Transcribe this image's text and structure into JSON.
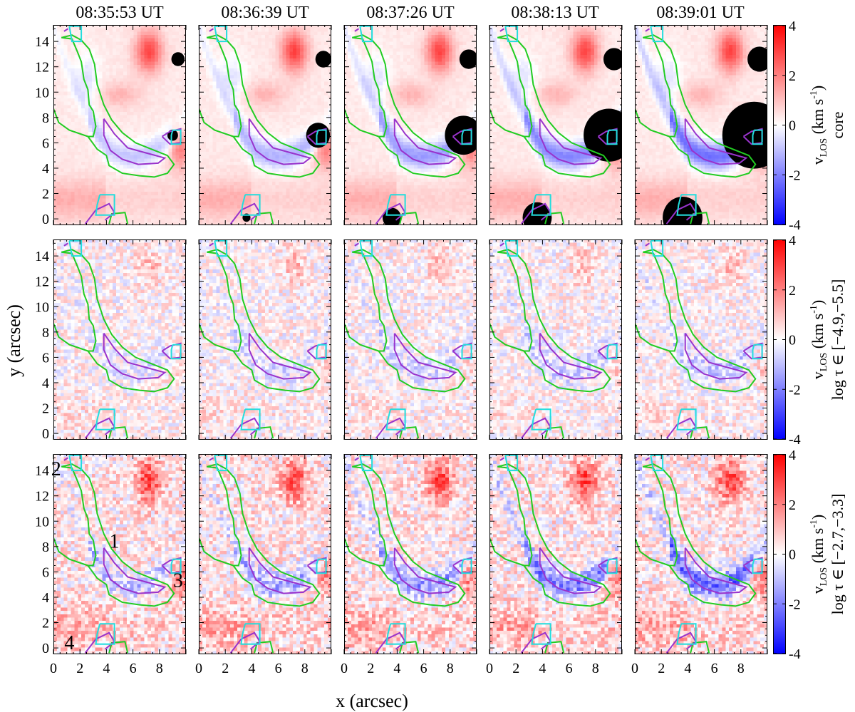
{
  "chart_data": {
    "type": "heatmap",
    "times": [
      "08:35:53 UT",
      "08:36:39 UT",
      "08:37:26 UT",
      "08:38:13 UT",
      "08:39:01 UT"
    ],
    "xlabel": "x  (arcsec)",
    "ylabel": "y  (arcsec)",
    "xlim": [
      0,
      10
    ],
    "ylim": [
      -0.5,
      15.3
    ],
    "x_ticks": [
      "0",
      "2",
      "4",
      "6",
      "8"
    ],
    "y_ticks": [
      "0",
      "2",
      "4",
      "6",
      "8",
      "10",
      "12",
      "14"
    ],
    "colorbar": {
      "range": [
        -4,
        4
      ],
      "ticks": [
        "4",
        "2",
        "0",
        "-2",
        "-4"
      ],
      "colormap": [
        "#0000ff",
        "#ffffff",
        "#ff0000"
      ]
    },
    "rows": [
      {
        "label_line1": "v",
        "label_sub": "LOS",
        "label_units": " (km s",
        "label_exp": "-1",
        "label_close": ")",
        "label_line2": "core"
      },
      {
        "label_line1": "v",
        "label_sub": "LOS",
        "label_units": " (km s",
        "label_exp": "-1",
        "label_close": ")",
        "label_line2": "log τ ∈ [−4.9,−5.5]"
      },
      {
        "label_line1": "v",
        "label_sub": "LOS",
        "label_units": " (km s",
        "label_exp": "-1",
        "label_close": ")",
        "label_line2": "log τ ∈ [−2.7,−3.3]"
      }
    ],
    "annotations": [
      {
        "text": "1",
        "x": 4.6,
        "y": 7.9
      },
      {
        "text": "2",
        "x": 0.2,
        "y": 13.6
      },
      {
        "text": "3",
        "x": 9.4,
        "y": 4.8
      },
      {
        "text": "4",
        "x": 1.2,
        "y": -0.1
      }
    ],
    "contour_colors": {
      "green": "#22cc22",
      "purple": "#9933cc",
      "cyan": "#22dddd"
    },
    "contours": {
      "green": [
        [
          0.6,
          14.3
        ],
        [
          1.4,
          14.2
        ],
        [
          1.8,
          13.2
        ],
        [
          2.1,
          12.4
        ],
        [
          2.3,
          11.0
        ],
        [
          2.6,
          10.2
        ],
        [
          2.7,
          9.0
        ],
        [
          3.0,
          8.5
        ],
        [
          3.2,
          7.3
        ],
        [
          3.0,
          6.5
        ],
        [
          2.6,
          6.5
        ],
        [
          3.3,
          5.5
        ],
        [
          4.0,
          5.0
        ],
        [
          4.2,
          4.2
        ],
        [
          5.2,
          3.6
        ],
        [
          6.5,
          3.4
        ],
        [
          7.6,
          3.3
        ],
        [
          8.6,
          3.6
        ],
        [
          9.1,
          4.3
        ],
        [
          8.6,
          5.0
        ],
        [
          7.4,
          5.5
        ],
        [
          6.2,
          6.0
        ],
        [
          5.2,
          6.8
        ],
        [
          4.4,
          7.8
        ],
        [
          3.8,
          9.0
        ],
        [
          3.3,
          10.6
        ],
        [
          3.1,
          12.2
        ],
        [
          2.7,
          13.4
        ],
        [
          2.1,
          14.1
        ],
        [
          1.4,
          14.5
        ],
        [
          0.6,
          14.3
        ]
      ],
      "green_left": [
        [
          0,
          8.7
        ],
        [
          0.4,
          7.6
        ],
        [
          1.2,
          7.0
        ],
        [
          2.6,
          6.5
        ]
      ],
      "green_bottom": [
        [
          4.2,
          -0.4
        ],
        [
          4.4,
          0.4
        ],
        [
          5.4,
          0.5
        ],
        [
          5.6,
          -0.4
        ]
      ],
      "purple_main": [
        [
          3.8,
          7.9
        ],
        [
          4.6,
          6.7
        ],
        [
          5.6,
          5.6
        ],
        [
          7.0,
          5.2
        ],
        [
          8.4,
          4.8
        ],
        [
          7.9,
          4.4
        ],
        [
          6.4,
          4.3
        ],
        [
          5.2,
          4.7
        ],
        [
          4.3,
          5.4
        ],
        [
          3.8,
          6.6
        ],
        [
          3.8,
          7.9
        ]
      ],
      "purple_right": [
        [
          8.2,
          6.5
        ],
        [
          8.8,
          6.9
        ],
        [
          9.6,
          7.1
        ],
        [
          9.6,
          6.0
        ],
        [
          8.8,
          5.9
        ],
        [
          8.2,
          6.5
        ]
      ],
      "purple_bottom": [
        [
          2.4,
          -0.4
        ],
        [
          3.2,
          0.7
        ],
        [
          4.2,
          1.2
        ],
        [
          4.6,
          0.5
        ],
        [
          3.9,
          -0.1
        ]
      ],
      "purple_top": [
        [
          0.8,
          14.8
        ],
        [
          1.1,
          15.0
        ]
      ],
      "cyan_top": [
        [
          1.2,
          15.2
        ],
        [
          2.1,
          15.2
        ],
        [
          2.1,
          14.0
        ],
        [
          1.4,
          14.0
        ],
        [
          1.2,
          15.2
        ]
      ],
      "cyan_right": [
        [
          9.0,
          7.0
        ],
        [
          9.6,
          7.0
        ],
        [
          9.6,
          5.9
        ],
        [
          8.9,
          5.9
        ],
        [
          8.9,
          6.6
        ],
        [
          9.0,
          7.0
        ]
      ],
      "cyan_bottom": [
        [
          3.5,
          1.9
        ],
        [
          4.6,
          1.9
        ],
        [
          4.6,
          0.3
        ],
        [
          3.2,
          0.3
        ],
        [
          3.3,
          1.1
        ],
        [
          3.5,
          1.9
        ]
      ]
    }
  }
}
